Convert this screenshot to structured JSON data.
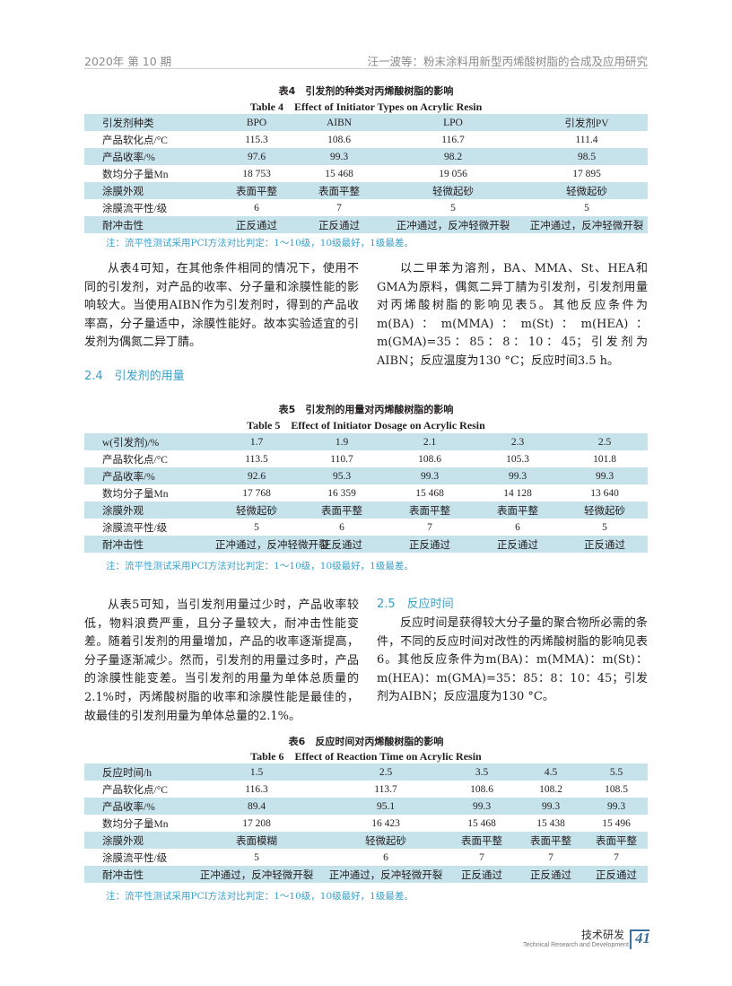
{
  "header": {
    "left": "2020年 第 10 期",
    "right": "汪一波等：粉末涂料用新型丙烯酸树脂的合成及应用研究"
  },
  "colors": {
    "accent": "#3aa0c8",
    "row_shade": "#c6e2eb"
  },
  "table4": {
    "title_cn": "表4　引发剂的种类对丙烯酸树脂的影响",
    "title_en": "Table 4　Effect of Initiator Types on Acrylic Resin",
    "rows": [
      [
        "引发剂种类",
        "BPO",
        "AIBN",
        "LPO",
        "引发剂PV"
      ],
      [
        "产品软化点/°C",
        "115.3",
        "108.6",
        "116.7",
        "111.4"
      ],
      [
        "产品收率/%",
        "97.6",
        "99.3",
        "98.2",
        "98.5"
      ],
      [
        "数均分子量Mn",
        "18 753",
        "15 468",
        "19 056",
        "17 895"
      ],
      [
        "涂膜外观",
        "表面平整",
        "表面平整",
        "轻微起砂",
        "轻微起砂"
      ],
      [
        "涂膜流平性/级",
        "6",
        "7",
        "5",
        "5"
      ],
      [
        "耐冲击性",
        "正反通过",
        "正反通过",
        "正冲通过，反冲轻微开裂",
        "正冲通过，反冲轻微开裂"
      ]
    ],
    "note": "注：流平性测试采用PCI方法对比判定：1～10级，10级最好，1级最差。"
  },
  "para1_left": "从表4可知，在其他条件相同的情况下，使用不同的引发剂，对产品的收率、分子量和涂膜性能的影响较大。当使用AIBN作为引发剂时，得到的产品收率高，分子量适中，涂膜性能好。故本实验适宜的引发剂为偶氮二异丁腈。",
  "section_2_4": "2.4　引发剂的用量",
  "para1_right": "以二甲苯为溶剂，BA、MMA、St、HEA和GMA为原料，偶氮二异丁腈为引发剂，引发剂用量对丙烯酸树脂的影响见表5。其他反应条件为m(BA)：m(MMA)：m(St)：m(HEA)：m(GMA)=35：85：8：10：45；引发剂为AIBN；反应温度为130 °C；反应时间3.5 h。",
  "table5": {
    "title_cn": "表5　引发剂的用量对丙烯酸树脂的影响",
    "title_en": "Table 5　Effect of Initiator Dosage on Acrylic Resin",
    "rows": [
      [
        "w(引发剂)/%",
        "1.7",
        "1.9",
        "2.1",
        "2.3",
        "2.5"
      ],
      [
        "产品软化点/°C",
        "113.5",
        "110.7",
        "108.6",
        "105.3",
        "101.8"
      ],
      [
        "产品收率/%",
        "92.6",
        "95.3",
        "99.3",
        "99.3",
        "99.3"
      ],
      [
        "数均分子量Mn",
        "17 768",
        "16 359",
        "15 468",
        "14 128",
        "13 640"
      ],
      [
        "涂膜外观",
        "轻微起砂",
        "表面平整",
        "表面平整",
        "表面平整",
        "轻微起砂"
      ],
      [
        "涂膜流平性/级",
        "5",
        "6",
        "7",
        "6",
        "5"
      ],
      [
        "耐冲击性",
        "正冲通过，反冲轻微开裂",
        "正反通过",
        "正反通过",
        "正反通过",
        "正反通过"
      ]
    ],
    "note": "注：流平性测试采用PCI方法对比判定：1～10级，10级最好，1级最差。"
  },
  "para2_left": "从表5可知，当引发剂用量过少时，产品收率较低，物料浪费严重，且分子量较大，耐冲击性能变差。随着引发剂的用量增加，产品的收率逐渐提高，分子量逐渐减少。然而，引发剂的用量过多时，产品的涂膜性能变差。当引发剂的用量为单体总质量的2.1%时，丙烯酸树脂的收率和涂膜性能是最佳的，故最佳的引发剂用量为单体总量的2.1%。",
  "section_2_5": "2.5　反应时间",
  "para2_right": "反应时间是获得较大分子量的聚合物所必需的条件，不同的反应时间对改性的丙烯酸树脂的影响见表6。其他反应条件为m(BA)：m(MMA)：m(St)：m(HEA)：m(GMA)=35：85：8：10：45；引发剂为AIBN；反应温度为130 °C。",
  "table6": {
    "title_cn": "表6　反应时间对丙烯酸树脂的影响",
    "title_en": "Table 6　Effect of Reaction Time on Acrylic Resin",
    "rows": [
      [
        "反应时间/h",
        "1.5",
        "2.5",
        "3.5",
        "4.5",
        "5.5"
      ],
      [
        "产品软化点/°C",
        "116.3",
        "113.7",
        "108.6",
        "108.2",
        "108.5"
      ],
      [
        "产品收率/%",
        "89.4",
        "95.1",
        "99.3",
        "99.3",
        "99.3"
      ],
      [
        "数均分子量Mn",
        "17 208",
        "16 423",
        "15 468",
        "15 438",
        "15 496"
      ],
      [
        "涂膜外观",
        "表面模糊",
        "轻微起砂",
        "表面平整",
        "表面平整",
        "表面平整"
      ],
      [
        "涂膜流平性/级",
        "5",
        "6",
        "7",
        "7",
        "7"
      ],
      [
        "耐冲击性",
        "正冲通过，反冲轻微开裂",
        "正冲通过，反冲轻微开裂",
        "正反通过",
        "正反通过",
        "正反通过"
      ]
    ],
    "note": "注：流平性测试采用PCI方法对比判定：1～10级，10级最好，1级最差。"
  },
  "footer": {
    "section_cn": "技术研发",
    "section_en": "Technical Research and Development",
    "page": "41"
  }
}
